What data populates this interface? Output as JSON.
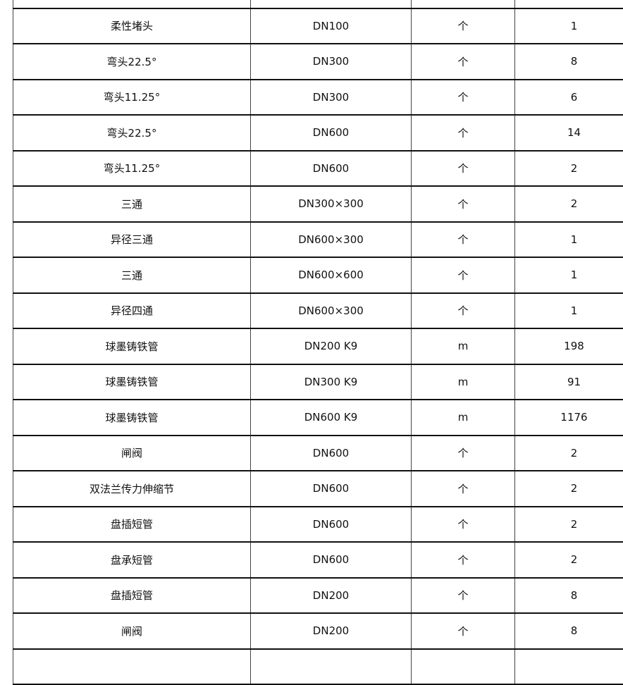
{
  "table": {
    "rows": [
      [
        "",
        "",
        "",
        ""
      ],
      [
        "柔性堵头",
        "DN100",
        "个",
        "1"
      ],
      [
        "弯头22.5°",
        "DN300",
        "个",
        "8"
      ],
      [
        "弯头11.25°",
        "DN300",
        "个",
        "6"
      ],
      [
        "弯头22.5°",
        "DN600",
        "个",
        "14"
      ],
      [
        "弯头11.25°",
        "DN600",
        "个",
        "2"
      ],
      [
        "三通",
        "DN300×300",
        "个",
        "2"
      ],
      [
        "异径三通",
        "DN600×300",
        "个",
        "1"
      ],
      [
        "三通",
        "DN600×600",
        "个",
        "1"
      ],
      [
        "异径四通",
        "DN600×300",
        "个",
        "1"
      ],
      [
        "球墨铸铁管",
        "DN200 K9",
        "m",
        "198"
      ],
      [
        "球墨铸铁管",
        "DN300 K9",
        "m",
        "91"
      ],
      [
        "球墨铸铁管",
        "DN600 K9",
        "m",
        "1176"
      ],
      [
        "闸阀",
        "DN600",
        "个",
        "2"
      ],
      [
        "双法兰传力伸缩节",
        "DN600",
        "个",
        "2"
      ],
      [
        "盘插短管",
        "DN600",
        "个",
        "2"
      ],
      [
        "盘承短管",
        "DN600",
        "个",
        "2"
      ],
      [
        "盘插短管",
        "DN200",
        "个",
        "8"
      ],
      [
        "闸阀",
        "DN200",
        "个",
        "8"
      ],
      [
        "",
        "",
        "",
        ""
      ]
    ]
  }
}
